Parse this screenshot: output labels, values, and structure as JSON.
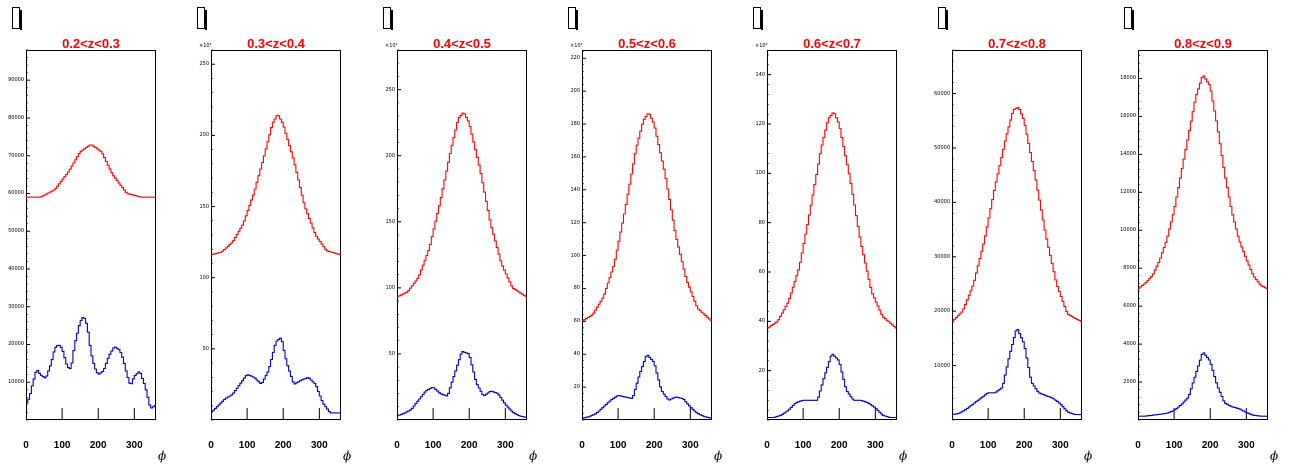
{
  "chart_data": [
    {
      "type": "line",
      "title": "0.2<z<0.3",
      "xlabel": "ϕ",
      "exponent": "",
      "xlim": [
        0,
        360
      ],
      "ylim": [
        0,
        98000
      ],
      "yticks": [
        "10000",
        "20000",
        "30000",
        "40000",
        "50000",
        "60000",
        "70000",
        "80000",
        "90000"
      ],
      "ytick_values": [
        10000,
        20000,
        30000,
        40000,
        50000,
        60000,
        70000,
        80000,
        90000
      ],
      "xticks": [
        "0",
        "100",
        "200",
        "300"
      ],
      "series": [
        {
          "color": "#ff0000",
          "x": [
            0,
            40,
            80,
            120,
            150,
            180,
            210,
            240,
            280,
            320,
            360
          ],
          "y": [
            59000,
            59000,
            61000,
            66000,
            71000,
            73000,
            71000,
            65000,
            60000,
            59000,
            59000
          ]
        },
        {
          "color": "#0000cc",
          "x": [
            0,
            10,
            20,
            30,
            40,
            55,
            70,
            80,
            90,
            100,
            115,
            125,
            135,
            150,
            160,
            170,
            180,
            190,
            200,
            215,
            230,
            245,
            260,
            270,
            280,
            290,
            300,
            315,
            330,
            345,
            360
          ],
          "y": [
            4000,
            6000,
            10000,
            13500,
            12000,
            11000,
            15000,
            19000,
            20000,
            19000,
            14000,
            13500,
            20000,
            26000,
            27500,
            25000,
            18000,
            14000,
            12000,
            13000,
            17000,
            19500,
            18500,
            16000,
            12000,
            9000,
            11500,
            13000,
            9000,
            3000,
            4000
          ]
        }
      ]
    },
    {
      "type": "line",
      "title": "0.3<z<0.4",
      "xlabel": "ϕ",
      "exponent": "×10³",
      "xlim": [
        0,
        360
      ],
      "ylim": [
        0,
        260
      ],
      "yticks": [
        "50",
        "100",
        "150",
        "200",
        "250"
      ],
      "ytick_values": [
        50,
        100,
        150,
        200,
        250
      ],
      "xticks": [
        "0",
        "100",
        "200",
        "300"
      ],
      "series": [
        {
          "color": "#ff0000",
          "x": [
            0,
            30,
            60,
            90,
            120,
            150,
            170,
            185,
            200,
            230,
            260,
            290,
            320,
            360
          ],
          "y": [
            116,
            118,
            125,
            138,
            160,
            188,
            208,
            215,
            208,
            182,
            150,
            130,
            119,
            116
          ]
        },
        {
          "color": "#0000cc",
          "x": [
            0,
            20,
            40,
            60,
            80,
            100,
            120,
            140,
            160,
            180,
            195,
            210,
            230,
            250,
            270,
            290,
            310,
            330,
            360
          ],
          "y": [
            5,
            10,
            15,
            18,
            25,
            32,
            30,
            25,
            35,
            55,
            58,
            40,
            25,
            28,
            30,
            25,
            12,
            5,
            5
          ]
        }
      ]
    },
    {
      "type": "line",
      "title": "0.4<z<0.5",
      "xlabel": "ϕ",
      "exponent": "×10³",
      "xlim": [
        0,
        360
      ],
      "ylim": [
        0,
        280
      ],
      "yticks": [
        "50",
        "100",
        "150",
        "200",
        "250"
      ],
      "ytick_values": [
        50,
        100,
        150,
        200,
        250
      ],
      "xticks": [
        "0",
        "100",
        "200",
        "300"
      ],
      "series": [
        {
          "color": "#ff0000",
          "x": [
            0,
            30,
            60,
            90,
            120,
            150,
            170,
            185,
            200,
            230,
            260,
            290,
            320,
            360
          ],
          "y": [
            93,
            97,
            108,
            130,
            165,
            205,
            228,
            233,
            225,
            190,
            148,
            118,
            100,
            93
          ]
        },
        {
          "color": "#0000cc",
          "x": [
            0,
            20,
            40,
            60,
            80,
            100,
            120,
            140,
            160,
            180,
            200,
            220,
            240,
            260,
            280,
            300,
            320,
            340,
            360
          ],
          "y": [
            3,
            5,
            8,
            15,
            22,
            25,
            20,
            18,
            35,
            52,
            50,
            28,
            18,
            22,
            20,
            12,
            6,
            3,
            2
          ]
        }
      ]
    },
    {
      "type": "line",
      "title": "0.5<z<0.6",
      "xlabel": "ϕ",
      "exponent": "×10³",
      "xlim": [
        0,
        360
      ],
      "ylim": [
        0,
        225
      ],
      "yticks": [
        "20",
        "40",
        "60",
        "80",
        "100",
        "120",
        "140",
        "160",
        "180",
        "200",
        "220"
      ],
      "ytick_values": [
        20,
        40,
        60,
        80,
        100,
        120,
        140,
        160,
        180,
        200,
        220
      ],
      "xticks": [
        "0",
        "100",
        "200",
        "300"
      ],
      "series": [
        {
          "color": "#ff0000",
          "x": [
            0,
            30,
            60,
            90,
            120,
            150,
            170,
            185,
            200,
            230,
            260,
            290,
            320,
            360
          ],
          "y": [
            60,
            64,
            75,
            95,
            128,
            165,
            182,
            187,
            180,
            150,
            112,
            85,
            68,
            60
          ]
        },
        {
          "color": "#0000cc",
          "x": [
            0,
            20,
            40,
            60,
            80,
            100,
            120,
            140,
            160,
            180,
            200,
            220,
            240,
            260,
            280,
            300,
            320,
            340,
            360
          ],
          "y": [
            1,
            2,
            4,
            8,
            12,
            15,
            14,
            13,
            28,
            40,
            35,
            18,
            12,
            14,
            13,
            8,
            4,
            2,
            1
          ]
        }
      ]
    },
    {
      "type": "line",
      "title": "0.6<z<0.7",
      "xlabel": "ϕ",
      "exponent": "×10³",
      "xlim": [
        0,
        360
      ],
      "ylim": [
        0,
        150
      ],
      "yticks": [
        "20",
        "40",
        "60",
        "80",
        "100",
        "120",
        "140"
      ],
      "ytick_values": [
        20,
        40,
        60,
        80,
        100,
        120,
        140
      ],
      "xticks": [
        "0",
        "100",
        "200",
        "300"
      ],
      "series": [
        {
          "color": "#ff0000",
          "x": [
            0,
            30,
            60,
            90,
            120,
            150,
            170,
            185,
            200,
            230,
            260,
            290,
            320,
            360
          ],
          "y": [
            37,
            40,
            48,
            62,
            85,
            110,
            122,
            125,
            120,
            98,
            72,
            52,
            42,
            37
          ]
        },
        {
          "color": "#0000cc",
          "x": [
            0,
            20,
            40,
            60,
            80,
            100,
            120,
            140,
            160,
            180,
            200,
            220,
            240,
            260,
            280,
            300,
            320,
            340,
            360
          ],
          "y": [
            1,
            1,
            2,
            4,
            7,
            8,
            8,
            8,
            18,
            27,
            24,
            12,
            8,
            8,
            7,
            5,
            2,
            1,
            1
          ]
        }
      ]
    },
    {
      "type": "line",
      "title": "0.7<z<0.8",
      "xlabel": "ϕ",
      "exponent": "",
      "xlim": [
        0,
        360
      ],
      "ylim": [
        0,
        68000
      ],
      "yticks": [
        "10000",
        "20000",
        "30000",
        "40000",
        "50000",
        "60000"
      ],
      "ytick_values": [
        10000,
        20000,
        30000,
        40000,
        50000,
        60000
      ],
      "xticks": [
        "0",
        "100",
        "200",
        "300"
      ],
      "series": [
        {
          "color": "#ff0000",
          "x": [
            0,
            30,
            60,
            90,
            120,
            150,
            170,
            185,
            200,
            230,
            260,
            290,
            320,
            360
          ],
          "y": [
            18000,
            20000,
            25000,
            33000,
            43000,
            52000,
            57000,
            57500,
            55000,
            45000,
            34000,
            25000,
            19500,
            18000
          ]
        },
        {
          "color": "#0000cc",
          "x": [
            0,
            20,
            40,
            60,
            80,
            100,
            120,
            140,
            160,
            180,
            200,
            220,
            240,
            260,
            280,
            300,
            320,
            340,
            360
          ],
          "y": [
            1000,
            1200,
            2000,
            3000,
            4000,
            5000,
            5000,
            6000,
            12000,
            17000,
            14000,
            7000,
            5000,
            4500,
            4000,
            3000,
            1500,
            1000,
            1000
          ]
        }
      ]
    },
    {
      "type": "line",
      "title": "0.8<z<0.9",
      "xlabel": "ϕ",
      "exponent": "",
      "xlim": [
        0,
        360
      ],
      "ylim": [
        0,
        19500
      ],
      "yticks": [
        "2000",
        "4000",
        "6000",
        "8000",
        "10000",
        "12000",
        "14000",
        "16000",
        "18000"
      ],
      "ytick_values": [
        2000,
        4000,
        6000,
        8000,
        10000,
        12000,
        14000,
        16000,
        18000
      ],
      "xticks": [
        "0",
        "100",
        "200",
        "300"
      ],
      "series": [
        {
          "color": "#ff0000",
          "x": [
            0,
            20,
            40,
            60,
            80,
            100,
            120,
            140,
            160,
            180,
            200,
            220,
            240,
            260,
            280,
            300,
            320,
            340,
            360
          ],
          "y": [
            6900,
            7200,
            7600,
            8400,
            9500,
            11000,
            13000,
            15000,
            17000,
            18200,
            17600,
            15500,
            13000,
            11000,
            9500,
            8500,
            7600,
            7100,
            6900
          ]
        },
        {
          "color": "#0000cc",
          "x": [
            0,
            20,
            40,
            60,
            80,
            100,
            120,
            140,
            160,
            180,
            200,
            220,
            240,
            260,
            280,
            300,
            320,
            340,
            360
          ],
          "y": [
            200,
            200,
            250,
            300,
            350,
            500,
            800,
            1200,
            2400,
            3600,
            3100,
            1800,
            900,
            700,
            600,
            400,
            250,
            200,
            200
          ]
        }
      ]
    }
  ]
}
